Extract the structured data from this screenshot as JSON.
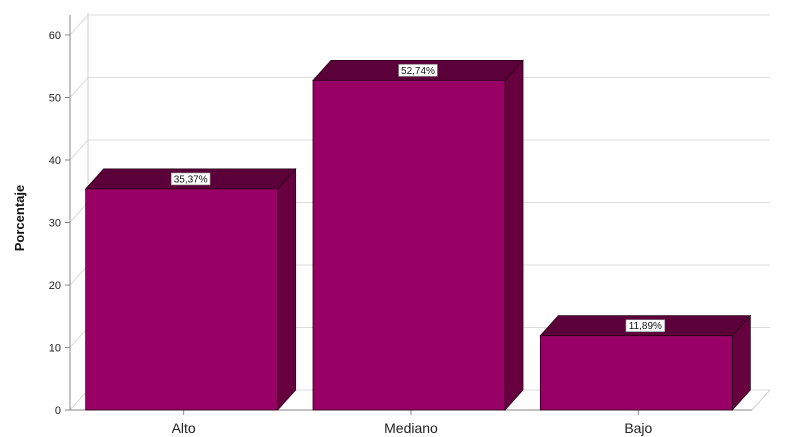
{
  "chart_data": {
    "type": "bar",
    "style": "3d",
    "categories": [
      "Alto",
      "Mediano",
      "Bajo"
    ],
    "values": [
      35.37,
      52.74,
      11.89
    ],
    "data_labels": [
      "35,37%",
      "52,74%",
      "11,89%"
    ],
    "ylabel": "Porcentaje",
    "xlabel": "",
    "ylim": [
      0,
      60
    ],
    "yticks": [
      "0",
      "10",
      "20",
      "30",
      "40",
      "50",
      "60"
    ],
    "grid": true,
    "colors": {
      "front": "#990066",
      "top": "#5c0039",
      "side": "#66003f",
      "grid": "#dcdcdc",
      "axis": "#888888"
    }
  }
}
